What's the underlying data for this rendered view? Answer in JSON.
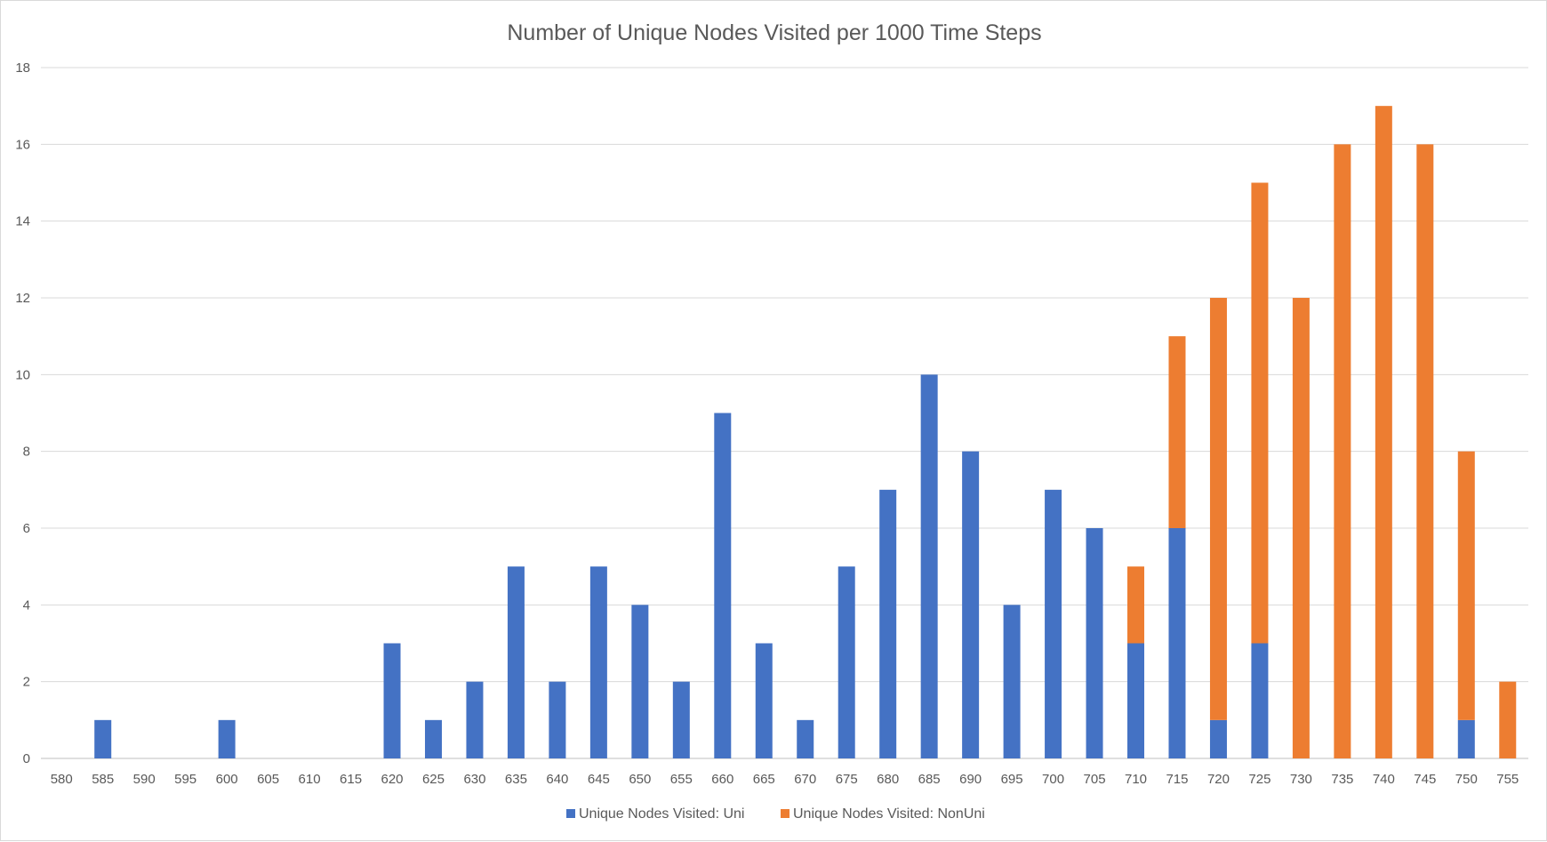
{
  "chart_data": {
    "type": "bar",
    "stacked": true,
    "title": "Number of Unique Nodes Visited per 1000 Time Steps",
    "xlabel": "",
    "ylabel": "",
    "ylim": [
      0,
      18
    ],
    "y_ticks": [
      "0",
      "2",
      "4",
      "6",
      "8",
      "10",
      "12",
      "14",
      "16",
      "18"
    ],
    "grid": true,
    "legend_position": "bottom",
    "categories": [
      "580",
      "585",
      "590",
      "595",
      "600",
      "605",
      "610",
      "615",
      "620",
      "625",
      "630",
      "635",
      "640",
      "645",
      "650",
      "655",
      "660",
      "665",
      "670",
      "675",
      "680",
      "685",
      "690",
      "695",
      "700",
      "705",
      "710",
      "715",
      "720",
      "725",
      "730",
      "735",
      "740",
      "745",
      "750",
      "755"
    ],
    "series": [
      {
        "name": "Unique Nodes Visited: Uni",
        "color": "#4472c4",
        "values": [
          0,
          1,
          0,
          0,
          1,
          0,
          0,
          0,
          3,
          1,
          2,
          5,
          2,
          5,
          4,
          2,
          9,
          3,
          1,
          5,
          7,
          10,
          8,
          4,
          7,
          6,
          3,
          6,
          1,
          3,
          0,
          0,
          0,
          0,
          1,
          0
        ]
      },
      {
        "name": "Unique Nodes Visited: NonUni",
        "color": "#ed7d31",
        "values": [
          0,
          0,
          0,
          0,
          0,
          0,
          0,
          0,
          0,
          0,
          0,
          0,
          0,
          0,
          0,
          0,
          0,
          0,
          0,
          0,
          0,
          0,
          0,
          0,
          0,
          0,
          2,
          5,
          11,
          12,
          12,
          16,
          17,
          16,
          7,
          2
        ]
      }
    ]
  }
}
